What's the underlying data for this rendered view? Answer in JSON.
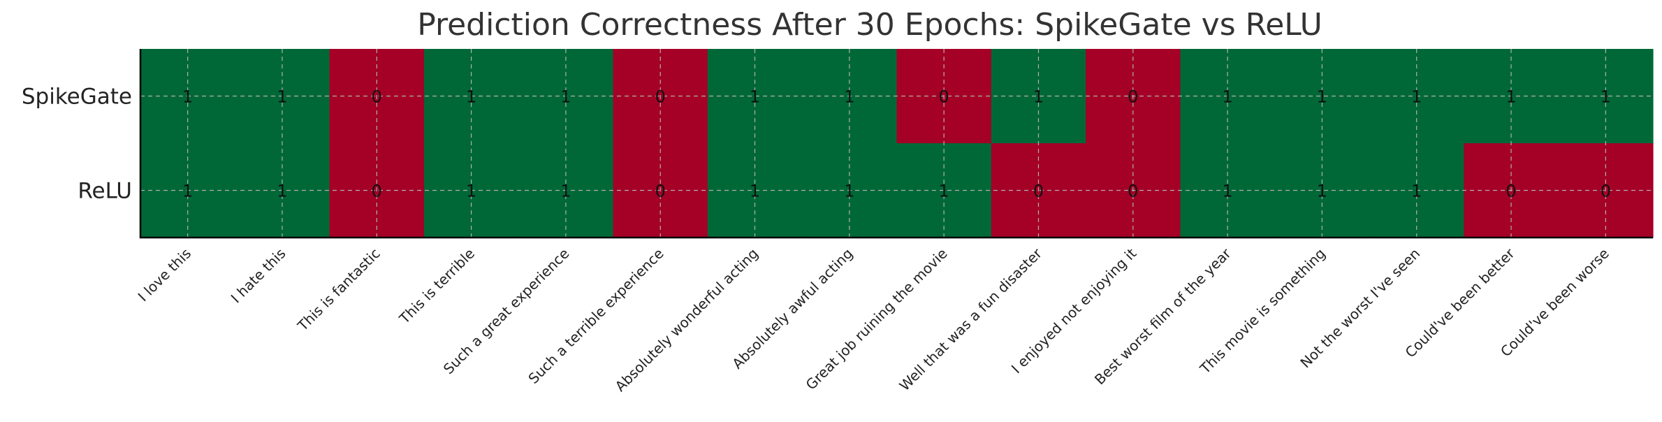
{
  "chart_data": {
    "type": "heatmap",
    "title": "Prediction Correctness After 30 Epochs: SpikeGate vs ReLU",
    "xlabel": "",
    "ylabel": "",
    "rows": [
      "SpikeGate",
      "ReLU"
    ],
    "columns": [
      "I love this",
      "I hate this",
      "This is fantastic",
      "This is terrible",
      "Such a great experience",
      "Such a terrible experience",
      "Absolutely wonderful acting",
      "Absolutely awful acting",
      "Great job ruining the movie",
      "Well that was a fun disaster",
      "I enjoyed not enjoying it",
      "Best worst film of the year",
      "This movie is something",
      "Not the worst I've seen",
      "Could've been better",
      "Could've been worse"
    ],
    "values": [
      [
        1,
        1,
        0,
        1,
        1,
        0,
        1,
        1,
        0,
        1,
        0,
        1,
        1,
        1,
        1,
        1
      ],
      [
        1,
        1,
        0,
        1,
        1,
        0,
        1,
        1,
        1,
        0,
        0,
        1,
        1,
        1,
        0,
        0
      ]
    ],
    "colors": {
      "correct": "#006837",
      "incorrect": "#a50026"
    },
    "annotated": true,
    "grid": true
  }
}
